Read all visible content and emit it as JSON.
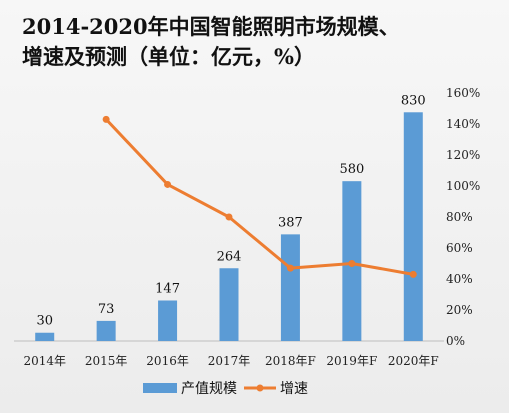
{
  "chart_data": {
    "type": "bar",
    "title_line1": "2014-2020年中国智能照明市场规模、",
    "title_line2": "增速及预测（单位：亿元，%）",
    "categories": [
      "2014年",
      "2015年",
      "2016年",
      "2017年",
      "2018年F",
      "2019年F",
      "2020年F"
    ],
    "series": [
      {
        "name": "产值规模",
        "type": "bar",
        "axis": "left",
        "color": "#5b9bd5",
        "values": [
          30,
          73,
          147,
          264,
          387,
          580,
          830
        ],
        "labels": [
          "30",
          "73",
          "147",
          "264",
          "387",
          "580",
          "830"
        ]
      },
      {
        "name": "增速",
        "type": "line",
        "axis": "right",
        "color": "#ed7d31",
        "values": [
          null,
          143,
          101,
          80,
          47,
          50,
          43
        ]
      }
    ],
    "left_ylim": [
      0,
      900
    ],
    "right_ylim": [
      0,
      160
    ],
    "right_ticks": [
      "0%",
      "20%",
      "40%",
      "60%",
      "80%",
      "100%",
      "120%",
      "140%",
      "160%"
    ],
    "grid": false,
    "legend_position": "bottom"
  }
}
